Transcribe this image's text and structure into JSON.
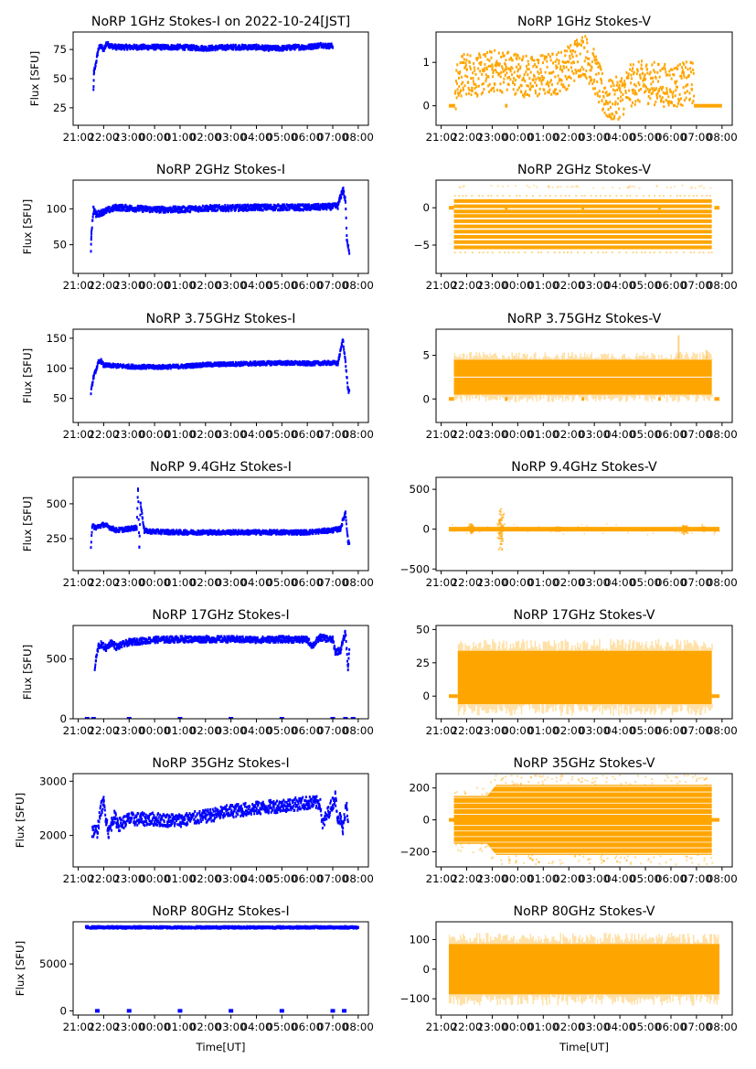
{
  "figure": {
    "xlabel": "Time[UT]",
    "ylabel_left": "Flux [SFU]",
    "colors": {
      "stokes_i": "#0000ff",
      "stokes_v": "#ffa500",
      "axes": "#000000"
    }
  },
  "chart_data": [
    {
      "type": "scatter",
      "panel": "1GHz-I",
      "title": "NoRP 1GHz Stokes-I on 2022-10-24[JST]",
      "xlabel": "",
      "ylabel": "Flux [SFU]",
      "xticks": [
        "21:00",
        "22:00",
        "23:00",
        "00:00",
        "01:00",
        "02:00",
        "03:00",
        "04:00",
        "05:00",
        "06:00",
        "07:00",
        "08:00"
      ],
      "xlim_hours": [
        -0.2,
        11.4
      ],
      "yticks": [
        25,
        50,
        75
      ],
      "ylim": [
        10,
        90
      ],
      "series": [
        {
          "name": "Stokes-I",
          "color": "#0000ff",
          "x_hours": [
            0.6,
            0.62,
            0.65,
            0.8,
            0.9,
            1.0,
            1.1,
            1.3,
            1.5,
            2,
            3,
            4,
            5,
            6,
            7,
            7.5,
            8,
            8.5,
            8.8,
            9,
            9.3,
            9.6,
            9.75,
            9.9,
            10.0
          ],
          "y": [
            40,
            56,
            58,
            76,
            78,
            74,
            80,
            78,
            77,
            77,
            77,
            77,
            76,
            77,
            77,
            76,
            76,
            77,
            77,
            77,
            78,
            79,
            78,
            78,
            78
          ],
          "spread": 2
        }
      ]
    },
    {
      "type": "scatter",
      "panel": "1GHz-V",
      "title": "NoRP 1GHz Stokes-V",
      "xlabel": "",
      "ylabel": "",
      "xticks": [
        "21:00",
        "22:00",
        "23:00",
        "00:00",
        "01:00",
        "02:00",
        "03:00",
        "04:00",
        "05:00",
        "06:00",
        "07:00",
        "08:00"
      ],
      "xlim_hours": [
        -0.2,
        11.4
      ],
      "yticks": [
        0,
        1
      ],
      "ylim": [
        -0.45,
        1.7
      ],
      "series": [
        {
          "name": "Stokes-V",
          "color": "#ffa500",
          "x_hours": [
            0.55,
            0.8,
            1.0,
            1.5,
            2.0,
            2.5,
            3.0,
            3.5,
            4.0,
            4.5,
            5.0,
            5.3,
            5.6,
            6.0,
            6.3,
            6.6,
            7.0,
            7.5,
            8.0,
            8.5,
            9.0,
            9.5,
            9.9
          ],
          "y": [
            0.35,
            0.7,
            0.75,
            0.7,
            0.8,
            0.8,
            0.75,
            0.65,
            0.7,
            0.75,
            0.9,
            1.1,
            1.2,
            0.8,
            0.3,
            0.1,
            0.2,
            0.5,
            0.55,
            0.5,
            0.45,
            0.5,
            0.55
          ],
          "spread": 0.5
        },
        {
          "name": "zero-segments",
          "color": "#ffa500",
          "segments_hours": [
            [
              0.3,
              0.55
            ],
            [
              2.5,
              2.6
            ],
            [
              9.9,
              11.0
            ]
          ],
          "y": 0
        }
      ]
    },
    {
      "type": "scatter",
      "panel": "2GHz-I",
      "title": "NoRP 2GHz Stokes-I",
      "xlabel": "",
      "ylabel": "Flux [SFU]",
      "xticks": [
        "21:00",
        "22:00",
        "23:00",
        "00:00",
        "01:00",
        "02:00",
        "03:00",
        "04:00",
        "05:00",
        "06:00",
        "07:00",
        "08:00"
      ],
      "xlim_hours": [
        -0.2,
        11.4
      ],
      "yticks": [
        50,
        100
      ],
      "ylim": [
        10,
        140
      ],
      "series": [
        {
          "name": "Stokes-I",
          "color": "#0000ff",
          "x_hours": [
            0.5,
            0.52,
            0.6,
            0.7,
            1.0,
            1.5,
            2,
            3,
            4,
            5,
            6,
            7,
            8,
            9,
            10,
            10.2,
            10.4,
            10.5,
            10.55,
            10.65
          ],
          "y": [
            40,
            68,
            100,
            92,
            96,
            102,
            101,
            99,
            99,
            101,
            101,
            102,
            102,
            102,
            103,
            104,
            128,
            110,
            60,
            40
          ],
          "spread": 4
        }
      ]
    },
    {
      "type": "scatter",
      "panel": "2GHz-V",
      "title": "NoRP 2GHz Stokes-V",
      "xlabel": "",
      "ylabel": "",
      "xticks": [
        "21:00",
        "22:00",
        "23:00",
        "00:00",
        "01:00",
        "02:00",
        "03:00",
        "04:00",
        "05:00",
        "06:00",
        "07:00",
        "08:00"
      ],
      "xlim_hours": [
        -0.2,
        11.4
      ],
      "yticks": [
        -5,
        0
      ],
      "ylim": [
        -8.8,
        3.7
      ],
      "series": [
        {
          "name": "Stokes-V",
          "color": "#ffa500",
          "quantized_levels": [
            1.6,
            0.9,
            0.2,
            -0.5,
            -1.1,
            -1.8,
            -2.5,
            -3.2,
            -3.9,
            -4.6,
            -5.3,
            -6.0
          ],
          "x_range_hours": [
            0.5,
            10.6
          ]
        },
        {
          "name": "zero-segments",
          "color": "#ffa500",
          "segments_hours": [
            [
              0.3,
              0.5
            ],
            [
              2.5,
              2.6
            ],
            [
              5.5,
              5.6
            ],
            [
              8.5,
              8.6
            ],
            [
              10.7,
              10.9
            ]
          ],
          "y": 0
        }
      ]
    },
    {
      "type": "scatter",
      "panel": "3.75GHz-I",
      "title": "NoRP 3.75GHz Stokes-I",
      "xlabel": "",
      "ylabel": "Flux [SFU]",
      "xticks": [
        "21:00",
        "22:00",
        "23:00",
        "00:00",
        "01:00",
        "02:00",
        "03:00",
        "04:00",
        "05:00",
        "06:00",
        "07:00",
        "08:00"
      ],
      "xlim_hours": [
        -0.2,
        11.4
      ],
      "yticks": [
        50,
        100,
        150
      ],
      "ylim": [
        10,
        165
      ],
      "series": [
        {
          "name": "Stokes-I",
          "color": "#0000ff",
          "x_hours": [
            0.5,
            0.6,
            0.8,
            0.9,
            1.0,
            1.5,
            2,
            3,
            4,
            5,
            6,
            7,
            8,
            9,
            10,
            10.2,
            10.4,
            10.5,
            10.6,
            10.65
          ],
          "y": [
            60,
            85,
            110,
            112,
            105,
            104,
            103,
            102,
            103,
            106,
            107,
            108,
            109,
            108,
            109,
            108,
            148,
            110,
            65,
            60
          ],
          "spread": 3
        }
      ]
    },
    {
      "type": "scatter",
      "panel": "3.75GHz-V",
      "title": "NoRP 3.75GHz Stokes-V",
      "xlabel": "",
      "ylabel": "",
      "xticks": [
        "21:00",
        "22:00",
        "23:00",
        "00:00",
        "01:00",
        "02:00",
        "03:00",
        "04:00",
        "05:00",
        "06:00",
        "07:00",
        "08:00"
      ],
      "xlim_hours": [
        -0.2,
        11.4
      ],
      "yticks": [
        0,
        5
      ],
      "ylim": [
        -2.7,
        8
      ],
      "series": [
        {
          "name": "Stokes-V",
          "color": "#ffa500",
          "band_center": 2.5,
          "band_half_width": 2.0,
          "x_range_hours": [
            0.5,
            10.6
          ],
          "outliers": [
            {
              "x_hours": 9.3,
              "y": 7.2
            },
            {
              "x_hours": 10.4,
              "y": 5.5
            },
            {
              "x_hours": 10.6,
              "y": -2.2
            }
          ]
        },
        {
          "name": "zero-segments",
          "color": "#ffa500",
          "segments_hours": [
            [
              0.3,
              0.5
            ],
            [
              2.5,
              2.6
            ],
            [
              5.5,
              5.6
            ],
            [
              8.5,
              8.6
            ],
            [
              10.7,
              10.9
            ]
          ],
          "y": 0
        }
      ]
    },
    {
      "type": "scatter",
      "panel": "9.4GHz-I",
      "title": "NoRP 9.4GHz Stokes-I",
      "xlabel": "",
      "ylabel": "Flux [SFU]",
      "xticks": [
        "21:00",
        "22:00",
        "23:00",
        "00:00",
        "01:00",
        "02:00",
        "03:00",
        "04:00",
        "05:00",
        "06:00",
        "07:00",
        "08:00"
      ],
      "xlim_hours": [
        -0.2,
        11.4
      ],
      "yticks": [
        250,
        500
      ],
      "ylim": [
        20,
        690
      ],
      "series": [
        {
          "name": "Stokes-I",
          "color": "#0000ff",
          "x_hours": [
            0.5,
            0.55,
            0.7,
            1.0,
            1.5,
            2.0,
            2.3,
            2.35,
            2.4,
            2.45,
            2.6,
            3,
            4,
            5,
            6,
            7,
            8,
            9,
            10,
            10.3,
            10.5,
            10.6,
            10.65
          ],
          "y": [
            200,
            340,
            330,
            350,
            310,
            320,
            330,
            600,
            200,
            500,
            305,
            300,
            295,
            295,
            295,
            295,
            295,
            295,
            310,
            320,
            440,
            230,
            210
          ],
          "spread": 15
        }
      ]
    },
    {
      "type": "scatter",
      "panel": "9.4GHz-V",
      "title": "NoRP 9.4GHz Stokes-V",
      "xlabel": "",
      "ylabel": "",
      "xticks": [
        "21:00",
        "22:00",
        "23:00",
        "00:00",
        "01:00",
        "02:00",
        "03:00",
        "04:00",
        "05:00",
        "06:00",
        "07:00",
        "08:00"
      ],
      "xlim_hours": [
        -0.2,
        11.4
      ],
      "yticks": [
        -500,
        0,
        500
      ],
      "ylim": [
        -520,
        650
      ],
      "series": [
        {
          "name": "Stokes-V",
          "color": "#ffa500",
          "baseline": 0,
          "x_range_hours": [
            0.3,
            10.9
          ],
          "bursts": [
            {
              "x_hours": 1.2,
              "amp": 110
            },
            {
              "x_hours": 2.35,
              "amp": 480
            },
            {
              "x_hours": 4.6,
              "amp": 40
            },
            {
              "x_hours": 9.55,
              "amp": 90
            },
            {
              "x_hours": 10.3,
              "amp": 50
            }
          ]
        }
      ]
    },
    {
      "type": "scatter",
      "panel": "17GHz-I",
      "title": "NoRP 17GHz Stokes-I",
      "xlabel": "",
      "ylabel": "Flux [SFU]",
      "xticks": [
        "21:00",
        "22:00",
        "23:00",
        "00:00",
        "01:00",
        "02:00",
        "03:00",
        "04:00",
        "05:00",
        "06:00",
        "07:00",
        "08:00"
      ],
      "xlim_hours": [
        -0.2,
        11.4
      ],
      "yticks": [
        0,
        500
      ],
      "ylim": [
        0,
        780
      ],
      "series": [
        {
          "name": "Stokes-I",
          "color": "#0000ff",
          "x_hours": [
            0.65,
            0.7,
            0.8,
            0.9,
            1.1,
            1.3,
            1.5,
            2,
            2.5,
            3,
            4,
            5,
            6,
            7,
            8,
            9,
            9.2,
            9.5,
            10,
            10.1,
            10.3,
            10.5,
            10.6,
            10.65
          ],
          "y": [
            400,
            500,
            610,
            620,
            590,
            640,
            600,
            640,
            650,
            660,
            665,
            665,
            665,
            660,
            665,
            660,
            610,
            680,
            660,
            560,
            570,
            720,
            420,
            600
          ],
          "spread": 25
        },
        {
          "name": "zero-points",
          "color": "#0000ff",
          "x_hours": [
            0.35,
            0.6,
            2,
            4,
            6,
            8,
            10,
            10.5,
            10.8
          ],
          "y": 0
        }
      ]
    },
    {
      "type": "scatter",
      "panel": "17GHz-V",
      "title": "NoRP 17GHz Stokes-V",
      "xlabel": "",
      "ylabel": "",
      "xticks": [
        "21:00",
        "22:00",
        "23:00",
        "00:00",
        "01:00",
        "02:00",
        "03:00",
        "04:00",
        "05:00",
        "06:00",
        "07:00",
        "08:00"
      ],
      "xlim_hours": [
        -0.2,
        11.4
      ],
      "yticks": [
        0,
        25,
        50
      ],
      "ylim": [
        -17,
        53
      ],
      "series": [
        {
          "name": "Stokes-V",
          "color": "#ffa500",
          "band_center": 14,
          "band_half_width": 20,
          "x_range_hours": [
            0.65,
            10.6
          ]
        },
        {
          "name": "zero-segments",
          "color": "#ffa500",
          "segments_hours": [
            [
              0.3,
              0.65
            ],
            [
              10.6,
              10.9
            ]
          ],
          "y": 0
        }
      ]
    },
    {
      "type": "scatter",
      "panel": "35GHz-I",
      "title": "NoRP 35GHz Stokes-I",
      "xlabel": "",
      "ylabel": "Flux [SFU]",
      "xticks": [
        "21:00",
        "22:00",
        "23:00",
        "00:00",
        "01:00",
        "02:00",
        "03:00",
        "04:00",
        "05:00",
        "06:00",
        "07:00",
        "08:00"
      ],
      "xlim_hours": [
        -0.2,
        11.4
      ],
      "yticks": [
        2000,
        3000
      ],
      "ylim": [
        1420,
        3140
      ],
      "series": [
        {
          "name": "Stokes-I",
          "color": "#0000ff",
          "x_hours": [
            0.55,
            0.75,
            0.9,
            1.0,
            1.1,
            1.2,
            1.4,
            1.6,
            2,
            3,
            3.5,
            4,
            5,
            6,
            7,
            8,
            9,
            9.5,
            9.6,
            10,
            10.1,
            10.2,
            10.3,
            10.4,
            10.5,
            10.55,
            10.6
          ],
          "y": [
            2080,
            2080,
            2500,
            2600,
            2300,
            2050,
            2350,
            2200,
            2300,
            2300,
            2280,
            2280,
            2350,
            2450,
            2500,
            2550,
            2600,
            2600,
            2200,
            2600,
            2700,
            2350,
            2300,
            2100,
            2500,
            2600,
            2300
          ],
          "spread": 120
        }
      ]
    },
    {
      "type": "scatter",
      "panel": "35GHz-V",
      "title": "NoRP 35GHz Stokes-V",
      "xlabel": "",
      "ylabel": "",
      "xticks": [
        "21:00",
        "22:00",
        "23:00",
        "00:00",
        "01:00",
        "02:00",
        "03:00",
        "04:00",
        "05:00",
        "06:00",
        "07:00",
        "08:00"
      ],
      "xlim_hours": [
        -0.2,
        11.4
      ],
      "yticks": [
        -200,
        0,
        200
      ],
      "ylim": [
        -295,
        290
      ],
      "series": [
        {
          "name": "Stokes-V",
          "color": "#ffa500",
          "band_half_width_start": 150,
          "band_half_width_end": 220,
          "x_range_hours": [
            0.5,
            10.6
          ],
          "quantized_step": 20
        },
        {
          "name": "zero-line",
          "color": "#ffa500",
          "segments_hours": [
            [
              0.3,
              10.9
            ]
          ],
          "y": 0
        }
      ]
    },
    {
      "type": "scatter",
      "panel": "80GHz-I",
      "title": "NoRP 80GHz Stokes-I",
      "xlabel": "Time[UT]",
      "ylabel": "Flux [SFU]",
      "xticks": [
        "21:00",
        "22:00",
        "23:00",
        "00:00",
        "01:00",
        "02:00",
        "03:00",
        "04:00",
        "05:00",
        "06:00",
        "07:00",
        "08:00"
      ],
      "xlim_hours": [
        -0.2,
        11.4
      ],
      "yticks": [
        0,
        5000
      ],
      "ylim": [
        -450,
        9500
      ],
      "series": [
        {
          "name": "Stokes-I",
          "color": "#0000ff",
          "x_hours": [
            0.3,
            11.0
          ],
          "y": [
            8900,
            8900
          ],
          "spread": 100
        },
        {
          "name": "zero-points",
          "color": "#0000ff",
          "x_hours": [
            0.75,
            2,
            4,
            6,
            8,
            10,
            10.45
          ],
          "y": 0
        }
      ]
    },
    {
      "type": "scatter",
      "panel": "80GHz-V",
      "title": "NoRP 80GHz Stokes-V",
      "xlabel": "Time[UT]",
      "ylabel": "",
      "xticks": [
        "21:00",
        "22:00",
        "23:00",
        "00:00",
        "01:00",
        "02:00",
        "03:00",
        "04:00",
        "05:00",
        "06:00",
        "07:00",
        "08:00"
      ],
      "xlim_hours": [
        -0.2,
        11.4
      ],
      "yticks": [
        -100,
        0,
        100
      ],
      "ylim": [
        -155,
        160
      ],
      "series": [
        {
          "name": "Stokes-V",
          "color": "#ffa500",
          "band_center": 0,
          "band_half_width": 85,
          "x_range_hours": [
            0.3,
            10.9
          ]
        }
      ]
    }
  ]
}
